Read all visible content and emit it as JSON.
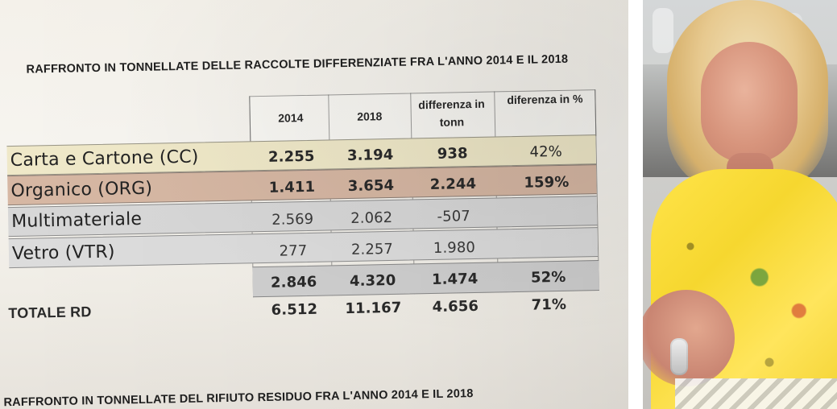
{
  "document": {
    "title_top": "RAFFRONTO IN TONNELLATE DELLE RACCOLTE DIFFERENZIATE FRA L'ANNO 2014 E IL 2018",
    "title_bottom": "RAFFRONTO IN TONNELLATE DEL RIFIUTO RESIDUO FRA L'ANNO 2014 E IL 2018",
    "table": {
      "headers": {
        "y2014": "2014",
        "y2018": "2018",
        "diff_tonn": "differenza in tonn",
        "diff_pct": "diferenza in %"
      },
      "rows": [
        {
          "label": "Carta e Cartone (CC)",
          "v2014": "2.255",
          "v2018": "3.194",
          "diff_tonn": "938",
          "diff_pct": "42%"
        },
        {
          "label": "Organico (ORG)",
          "v2014": "1.411",
          "v2018": "3.654",
          "diff_tonn": "2.244",
          "diff_pct": "159%"
        },
        {
          "label": "Multimateriale",
          "v2014": "2.569",
          "v2018": "2.062",
          "diff_tonn": "-507",
          "diff_pct": ""
        },
        {
          "label": "Vetro (VTR)",
          "v2014": "277",
          "v2018": "2.257",
          "diff_tonn": "1.980",
          "diff_pct": ""
        }
      ],
      "subtotal": {
        "v2014": "2.846",
        "v2018": "4.320",
        "diff_tonn": "1.474",
        "diff_pct": "52%"
      },
      "total": {
        "label": "TOTALE RD",
        "v2014": "6.512",
        "v2018": "11.167",
        "diff_tonn": "4.656",
        "diff_pct": "71%"
      }
    }
  },
  "photo": {
    "subject": "portrait-photo"
  }
}
